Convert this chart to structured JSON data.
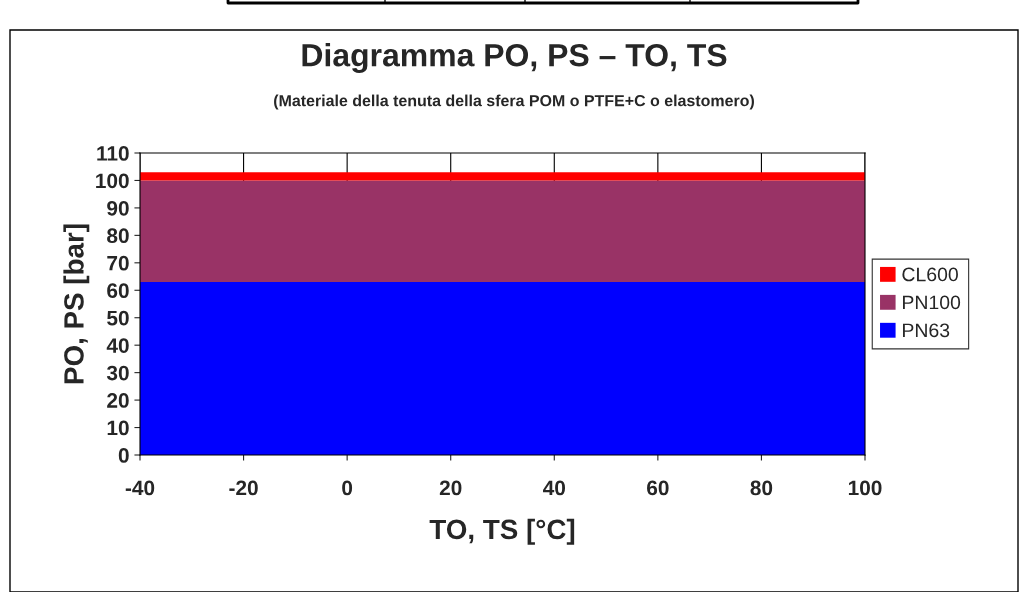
{
  "chart_data": {
    "type": "area",
    "title": "Diagramma PO, PS – TO, TS",
    "subtitle": "(Materiale della tenuta della sfera POM o PTFE+C o elastomero)",
    "xlabel": "TO, TS [°C]",
    "ylabel": "PO, PS [bar]",
    "x": [
      -40,
      100
    ],
    "stacked": true,
    "series": [
      {
        "name": "PN63",
        "color": "#0000ff",
        "values": [
          63,
          63
        ]
      },
      {
        "name": "PN100",
        "color": "#993366",
        "values": [
          37,
          37
        ]
      },
      {
        "name": "CL600",
        "color": "#ff0000",
        "values": [
          3,
          3
        ]
      }
    ],
    "xlim": [
      -40,
      100
    ],
    "xticks": [
      -40,
      -20,
      0,
      20,
      40,
      60,
      80,
      100
    ],
    "ylim": [
      0,
      110
    ],
    "yticks": [
      0,
      10,
      20,
      30,
      40,
      50,
      60,
      70,
      80,
      90,
      100,
      110
    ],
    "grid": "x",
    "legend": "right"
  }
}
